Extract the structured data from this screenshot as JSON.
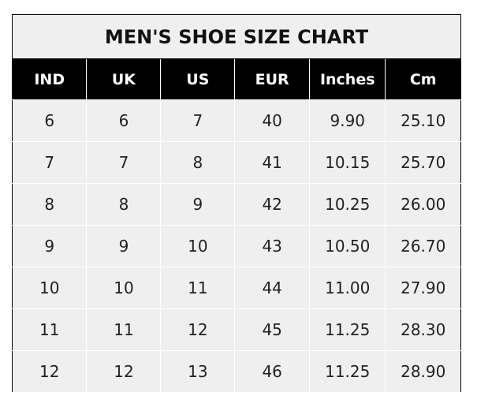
{
  "title": "MEN'S SHOE SIZE CHART",
  "headers": [
    "IND",
    "UK",
    "US",
    "EUR",
    "Inches",
    "Cm"
  ],
  "rows": [
    [
      "6",
      "6",
      "7",
      "40",
      "9.90",
      "25.10"
    ],
    [
      "7",
      "7",
      "8",
      "41",
      "10.15",
      "25.70"
    ],
    [
      "8",
      "8",
      "9",
      "42",
      "10.25",
      "26.00"
    ],
    [
      "9",
      "9",
      "10",
      "43",
      "10.50",
      "26.70"
    ],
    [
      "10",
      "10",
      "11",
      "44",
      "11.00",
      "27.90"
    ],
    [
      "11",
      "11",
      "12",
      "45",
      "11.25",
      "28.30"
    ],
    [
      "12",
      "12",
      "13",
      "46",
      "11.25",
      "28.90"
    ]
  ],
  "colors": {
    "header_bg": "#000000",
    "cell_bg": "#efefef",
    "header_text": "#ffffff"
  }
}
